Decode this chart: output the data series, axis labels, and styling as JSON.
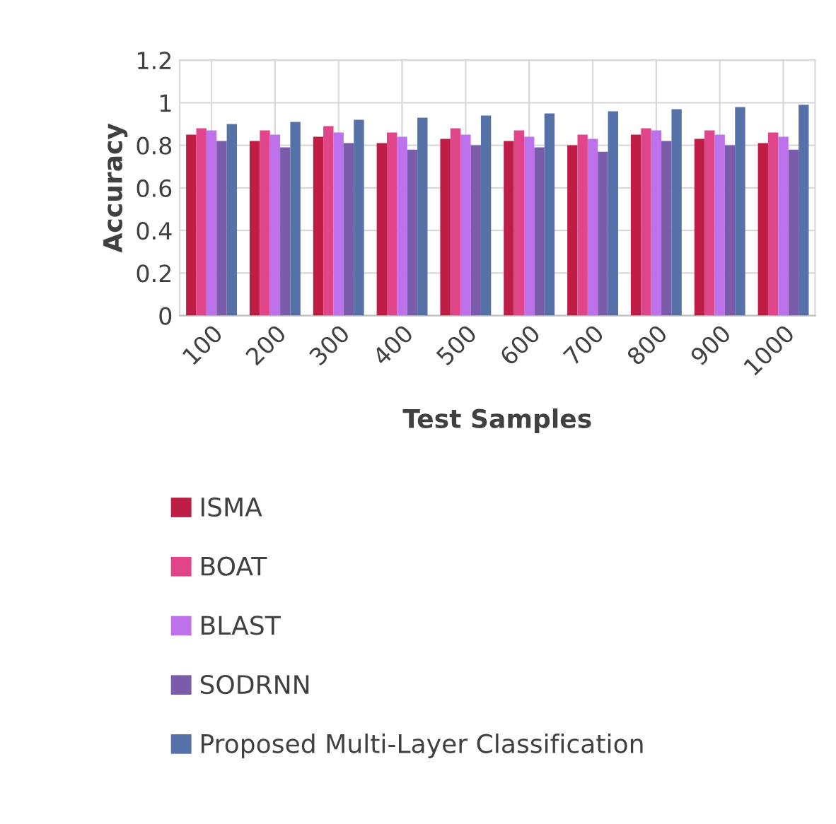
{
  "chart_data": {
    "type": "bar",
    "xlabel": "Test Samples",
    "ylabel": "Accuracy",
    "categories": [
      "100",
      "200",
      "300",
      "400",
      "500",
      "600",
      "700",
      "800",
      "900",
      "1000"
    ],
    "series": [
      {
        "name": "ISMA",
        "color": "#be1e46",
        "values": [
          0.85,
          0.82,
          0.84,
          0.81,
          0.83,
          0.82,
          0.8,
          0.85,
          0.83,
          0.81
        ]
      },
      {
        "name": "BOAT",
        "color": "#e0458a",
        "values": [
          0.88,
          0.87,
          0.89,
          0.86,
          0.88,
          0.87,
          0.85,
          0.88,
          0.87,
          0.86
        ]
      },
      {
        "name": "BLAST",
        "color": "#bd72ec",
        "values": [
          0.87,
          0.85,
          0.86,
          0.84,
          0.85,
          0.84,
          0.83,
          0.87,
          0.85,
          0.84
        ]
      },
      {
        "name": "SODRNN",
        "color": "#7a5cab",
        "values": [
          0.82,
          0.79,
          0.81,
          0.78,
          0.8,
          0.79,
          0.77,
          0.82,
          0.8,
          0.78
        ]
      },
      {
        "name": "Proposed Multi-Layer Classification",
        "color": "#5670a8",
        "values": [
          0.9,
          0.91,
          0.92,
          0.93,
          0.94,
          0.95,
          0.96,
          0.97,
          0.98,
          0.99
        ]
      }
    ],
    "ylim": [
      0,
      1.2
    ],
    "yticks": [
      0,
      0.2,
      0.4,
      0.6,
      0.8,
      1,
      1.2
    ],
    "grid": true,
    "legend": "bottom"
  }
}
